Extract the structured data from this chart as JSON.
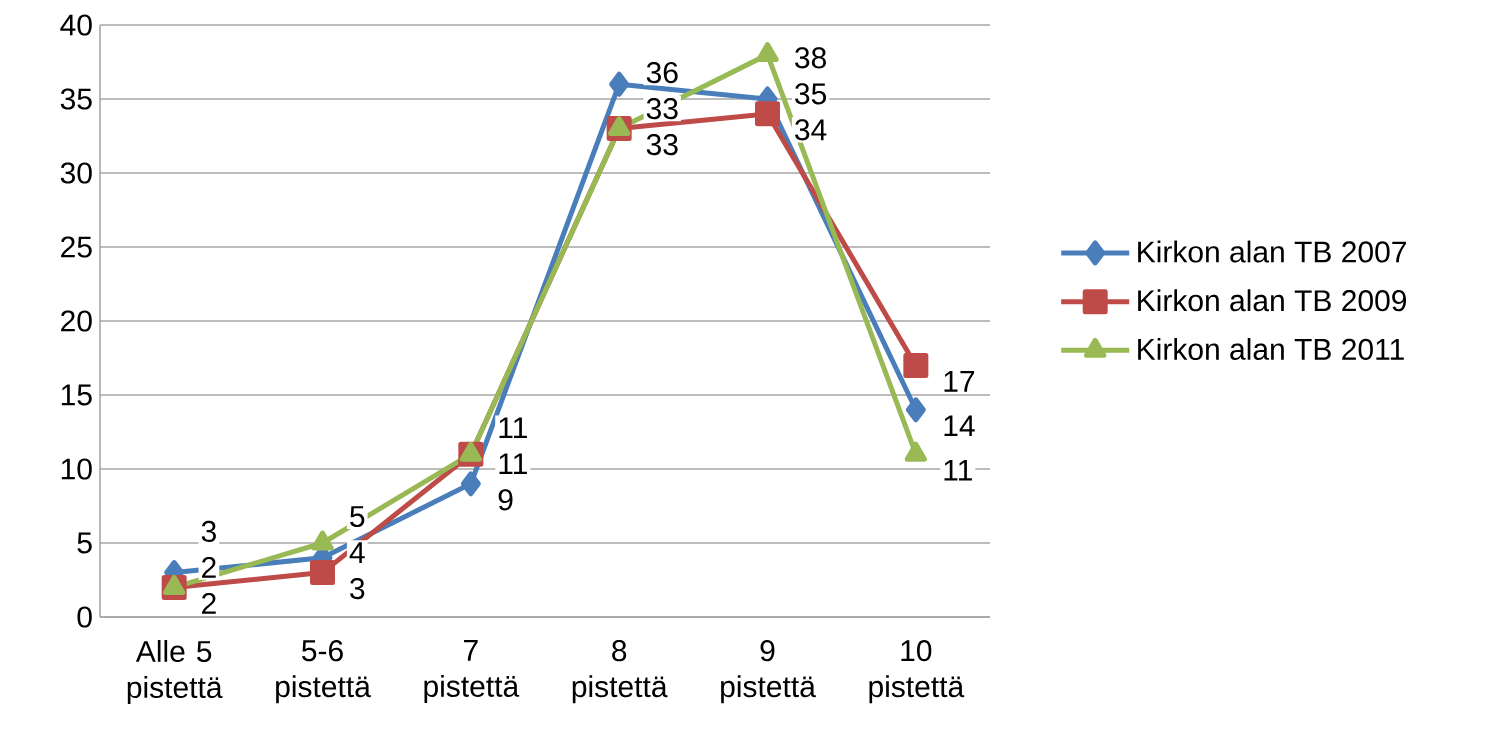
{
  "chart_data": {
    "type": "line",
    "categories": [
      "Alle 5 pistettä",
      "5-6 pistettä",
      "7 pistettä",
      "8 pistettä",
      "9 pistettä",
      "10 pistettä"
    ],
    "series": [
      {
        "name": "Kirkon alan TB 2007",
        "color": "#4a7ebb",
        "marker": "diamond",
        "values": [
          3,
          4,
          9,
          36,
          35,
          14
        ]
      },
      {
        "name": "Kirkon alan TB 2009",
        "color": "#be4b48",
        "marker": "square",
        "values": [
          2,
          3,
          11,
          33,
          34,
          17
        ]
      },
      {
        "name": "Kirkon alan TB 2011",
        "color": "#98b954",
        "marker": "triangle",
        "values": [
          2,
          5,
          11,
          33,
          38,
          11
        ]
      }
    ],
    "ylim": [
      0,
      40
    ],
    "yticks": [
      0,
      5,
      10,
      15,
      20,
      25,
      30,
      35,
      40
    ],
    "grid": "y",
    "legend": "right",
    "data_labels": true,
    "line_style": "solid"
  }
}
